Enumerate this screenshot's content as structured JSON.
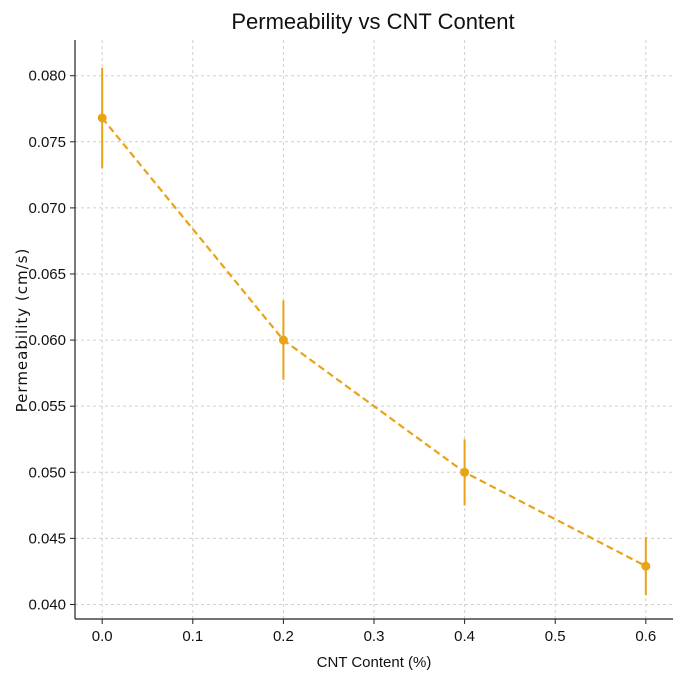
{
  "chart_data": {
    "type": "line",
    "title": "Permeability vs CNT Content",
    "xlabel": "CNT Content (%)",
    "ylabel": "Permeability (cm/s)",
    "xlim": [
      -0.03,
      0.63
    ],
    "ylim": [
      0.0389,
      0.0827
    ],
    "x_ticks": [
      0.0,
      0.1,
      0.2,
      0.3,
      0.4,
      0.5,
      0.6
    ],
    "x_tick_labels": [
      "0.0",
      "0.1",
      "0.2",
      "0.3",
      "0.4",
      "0.5",
      "0.6"
    ],
    "y_ticks": [
      0.04,
      0.045,
      0.05,
      0.055,
      0.06,
      0.065,
      0.07,
      0.075,
      0.08
    ],
    "y_tick_labels": [
      "0.040",
      "0.045",
      "0.050",
      "0.055",
      "0.060",
      "0.065",
      "0.070",
      "0.075",
      "0.080"
    ],
    "grid": true,
    "series": [
      {
        "x": [
          0.0,
          0.2,
          0.4,
          0.6
        ],
        "y": [
          0.0768,
          0.06,
          0.05,
          0.0429
        ],
        "yerr": [
          0.0038,
          0.003,
          0.0025,
          0.0022
        ],
        "color": "#E8A317",
        "line_style": "dashed",
        "marker": "circle"
      }
    ]
  }
}
